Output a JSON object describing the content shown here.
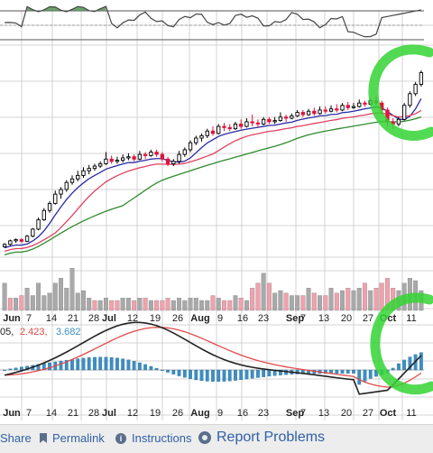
{
  "chart_data": {
    "type": "candlestick",
    "x_ticks": [
      "Jun",
      "7",
      "14",
      "21",
      "28",
      "Jul",
      "12",
      "19",
      "26",
      "Aug",
      "9",
      "16",
      "23",
      "Sep",
      "7",
      "13",
      "20",
      "27",
      "Oct",
      "11"
    ],
    "ohlc": [
      [
        0.45,
        0.55,
        0.4,
        0.6
      ],
      [
        0.55,
        0.7,
        0.5,
        0.75
      ],
      [
        0.7,
        0.75,
        0.62,
        0.8
      ],
      [
        0.75,
        0.68,
        0.6,
        0.82
      ],
      [
        0.68,
        0.9,
        0.65,
        0.95
      ],
      [
        0.9,
        1.2,
        0.85,
        1.25
      ],
      [
        1.2,
        1.6,
        1.15,
        1.7
      ],
      [
        1.6,
        2.0,
        1.55,
        2.1
      ],
      [
        2.0,
        2.3,
        1.9,
        2.4
      ],
      [
        2.3,
        2.7,
        2.25,
        2.85
      ],
      [
        2.7,
        2.9,
        2.5,
        3.0
      ],
      [
        2.9,
        3.2,
        2.8,
        3.3
      ],
      [
        3.2,
        3.35,
        3.1,
        3.5
      ],
      [
        3.35,
        3.5,
        3.25,
        3.7
      ],
      [
        3.5,
        3.7,
        3.4,
        3.85
      ],
      [
        3.7,
        3.8,
        3.55,
        3.95
      ],
      [
        3.8,
        3.9,
        3.7,
        4.0
      ],
      [
        3.9,
        4.0,
        3.82,
        4.1
      ],
      [
        4.0,
        4.2,
        3.95,
        4.5
      ],
      [
        4.2,
        4.1,
        4.0,
        4.35
      ],
      [
        4.1,
        4.15,
        4.0,
        4.3
      ],
      [
        4.15,
        4.25,
        4.05,
        4.4
      ],
      [
        4.25,
        4.3,
        4.15,
        4.45
      ],
      [
        4.3,
        4.2,
        4.1,
        4.4
      ],
      [
        4.2,
        4.4,
        4.15,
        4.55
      ],
      [
        4.4,
        4.35,
        4.2,
        4.5
      ],
      [
        4.35,
        4.5,
        4.3,
        4.6
      ],
      [
        4.5,
        4.4,
        4.3,
        4.6
      ],
      [
        4.4,
        4.2,
        4.1,
        4.5
      ],
      [
        4.2,
        4.0,
        3.9,
        4.3
      ],
      [
        4.0,
        4.1,
        3.9,
        4.2
      ],
      [
        4.1,
        4.4,
        4.0,
        4.55
      ],
      [
        4.4,
        4.6,
        4.3,
        4.7
      ],
      [
        4.6,
        4.9,
        4.5,
        5.0
      ],
      [
        4.9,
        5.1,
        4.8,
        5.2
      ],
      [
        5.1,
        5.2,
        4.95,
        5.3
      ],
      [
        5.2,
        5.4,
        5.1,
        5.5
      ],
      [
        5.4,
        5.3,
        5.2,
        5.6
      ],
      [
        5.3,
        5.6,
        5.25,
        5.7
      ],
      [
        5.6,
        5.55,
        5.4,
        5.75
      ],
      [
        5.55,
        5.5,
        5.4,
        5.7
      ],
      [
        5.5,
        5.7,
        5.45,
        5.8
      ],
      [
        5.7,
        5.6,
        5.5,
        5.9
      ],
      [
        5.6,
        5.8,
        5.55,
        5.95
      ],
      [
        5.8,
        5.75,
        5.6,
        6.1
      ],
      [
        5.75,
        5.7,
        5.55,
        5.9
      ],
      [
        5.7,
        5.9,
        5.65,
        6.0
      ],
      [
        5.9,
        5.8,
        5.7,
        6.0
      ],
      [
        5.8,
        5.85,
        5.7,
        6.0
      ],
      [
        5.85,
        6.0,
        5.8,
        6.2
      ],
      [
        6.0,
        5.95,
        5.8,
        6.1
      ],
      [
        5.95,
        6.05,
        5.9,
        6.15
      ],
      [
        6.05,
        6.2,
        6.0,
        6.3
      ],
      [
        6.2,
        6.1,
        6.0,
        6.3
      ],
      [
        6.1,
        6.25,
        6.05,
        6.35
      ],
      [
        6.25,
        6.15,
        6.05,
        6.4
      ],
      [
        6.15,
        6.3,
        6.1,
        6.45
      ],
      [
        6.3,
        6.25,
        6.15,
        6.45
      ],
      [
        6.25,
        6.35,
        6.2,
        6.5
      ],
      [
        6.35,
        6.3,
        6.2,
        6.55
      ],
      [
        6.3,
        6.5,
        6.25,
        6.6
      ],
      [
        6.5,
        6.4,
        6.3,
        6.65
      ],
      [
        6.4,
        6.45,
        6.35,
        6.6
      ],
      [
        6.45,
        6.6,
        6.4,
        6.75
      ],
      [
        6.6,
        6.55,
        6.45,
        6.7
      ],
      [
        6.55,
        6.7,
        6.5,
        6.8
      ],
      [
        6.7,
        6.6,
        6.5,
        6.9
      ],
      [
        6.6,
        6.3,
        6.1,
        6.7
      ],
      [
        6.3,
        5.8,
        5.6,
        6.4
      ],
      [
        5.8,
        5.7,
        5.5,
        5.95
      ],
      [
        5.7,
        5.9,
        5.6,
        6.0
      ],
      [
        5.9,
        6.5,
        5.85,
        6.6
      ],
      [
        6.5,
        7.0,
        6.4,
        7.1
      ],
      [
        7.0,
        7.4,
        6.9,
        7.5
      ],
      [
        7.4,
        7.9,
        7.3,
        8.0
      ]
    ],
    "volume": [
      0.55,
      0.25,
      0.25,
      0.3,
      0.45,
      0.3,
      0.55,
      0.3,
      0.35,
      0.55,
      0.65,
      0.45,
      0.85,
      0.35,
      0.4,
      0.25,
      0.2,
      0.2,
      0.25,
      0.2,
      0.2,
      0.25,
      0.25,
      0.2,
      0.25,
      0.25,
      0.2,
      0.2,
      0.2,
      0.25,
      0.2,
      0.25,
      0.2,
      0.25,
      0.25,
      0.2,
      0.2,
      0.3,
      0.25,
      0.2,
      0.2,
      0.3,
      0.25,
      0.2,
      0.45,
      0.55,
      0.75,
      0.55,
      0.35,
      0.4,
      0.35,
      0.3,
      0.3,
      0.3,
      0.45,
      0.35,
      0.3,
      0.3,
      0.45,
      0.35,
      0.4,
      0.45,
      0.4,
      0.45,
      0.55,
      0.4,
      0.45,
      0.55,
      0.65,
      0.45,
      0.4,
      0.55,
      0.65,
      0.6,
      0.4
    ],
    "volume_up": [
      1,
      0,
      1,
      0,
      1,
      1,
      1,
      1,
      1,
      1,
      1,
      1,
      1,
      1,
      1,
      1,
      0,
      1,
      1,
      0,
      0,
      1,
      1,
      0,
      1,
      0,
      1,
      0,
      0,
      0,
      1,
      1,
      1,
      1,
      1,
      1,
      1,
      0,
      1,
      0,
      0,
      1,
      0,
      1,
      0,
      0,
      1,
      0,
      1,
      1,
      0,
      1,
      1,
      0,
      1,
      0,
      1,
      0,
      1,
      0,
      1,
      0,
      1,
      1,
      0,
      1,
      0,
      0,
      0,
      0,
      1,
      1,
      1,
      1,
      1
    ],
    "macd_legend": [
      "05",
      "2.423",
      "3.682"
    ],
    "colors": {
      "up_candle": "#000000",
      "down_candle": "#e0143c",
      "ma_short": "#2a2aa5",
      "ma_mid": "#e04060",
      "ma_long": "#2e8b2e",
      "vol_up": "#a9a9a9",
      "vol_down": "#f1a1ad",
      "macd_line": "#222222",
      "signal_line": "#e04a4a",
      "hist": "#3a8fc4",
      "highlight": "#35d335",
      "grid": "#c8c8c8"
    }
  },
  "toolbar": {
    "share_label": "Share",
    "permalink_label": "Permalink",
    "instructions_label": "Instructions",
    "report_label": "Report Problems"
  }
}
